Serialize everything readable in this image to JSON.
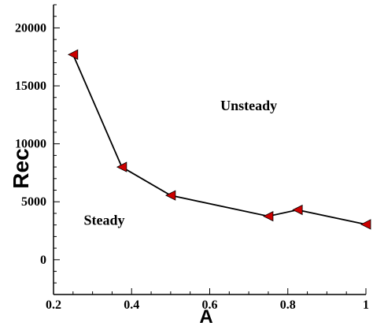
{
  "chart_data": {
    "type": "line",
    "xlabel": "A",
    "ylabel": "Rec",
    "xlim": [
      0.2,
      1.0
    ],
    "ylim": [
      -3000,
      22000
    ],
    "x_ticks": [
      0.2,
      0.4,
      0.6,
      0.8,
      1.0
    ],
    "x_tick_labels": [
      "0.2",
      "0.4",
      "0.6",
      "0.8",
      "1"
    ],
    "y_ticks": [
      0,
      5000,
      10000,
      15000,
      20000
    ],
    "y_tick_labels": [
      "0",
      "5000",
      "10000",
      "15000",
      "20000"
    ],
    "grid": false,
    "series": [
      {
        "x": [
          0.25,
          0.375,
          0.5,
          0.75,
          0.825,
          1.0
        ],
        "y": [
          17700,
          8000,
          5550,
          3750,
          4300,
          3050
        ],
        "line_color": "#000000",
        "marker": "triangle-left",
        "marker_color": "#cc0000"
      }
    ],
    "annotations": [
      {
        "text": "Unsteady",
        "x": 0.7,
        "y": 12900
      },
      {
        "text": "Steady",
        "x": 0.33,
        "y": 3000
      }
    ]
  }
}
